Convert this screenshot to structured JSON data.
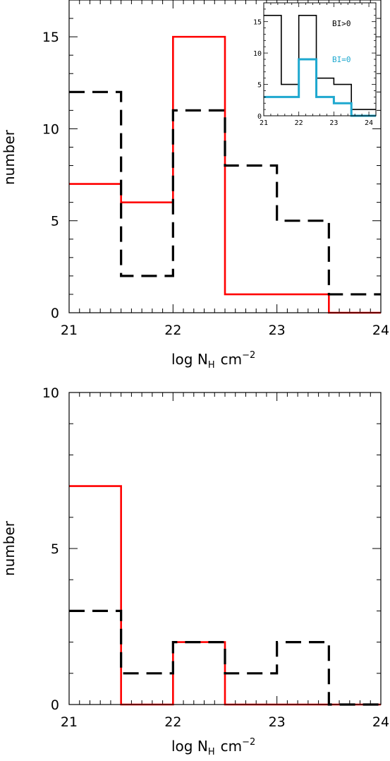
{
  "chart_data": [
    {
      "type": "histogram",
      "xlabel": "log N",
      "xlabel_sub": "H",
      "xlabel_unit": "cm",
      "xlabel_exp": "−2",
      "ylabel": "number",
      "xlim": [
        21,
        24
      ],
      "ylim": [
        0,
        17
      ],
      "xticks": [
        21,
        22,
        23,
        24
      ],
      "yticks": [
        0,
        5,
        10,
        15
      ],
      "bin_edges": [
        21,
        21.5,
        22,
        22.5,
        23,
        23.5,
        24
      ],
      "series": [
        {
          "style": "solid",
          "color": "#ff0000",
          "values": [
            7,
            6,
            15,
            1,
            1,
            0
          ]
        },
        {
          "style": "dashed",
          "color": "#000000",
          "values": [
            12,
            2,
            11,
            8,
            5,
            1
          ]
        }
      ],
      "inset": {
        "type": "histogram",
        "xlim": [
          21,
          24.2
        ],
        "ylim": [
          0,
          18
        ],
        "xticks": [
          21,
          22,
          23,
          24
        ],
        "yticks": [
          0,
          5,
          10,
          15
        ],
        "bin_edges": [
          21,
          21.5,
          22,
          22.5,
          23,
          23.5,
          24,
          24.2
        ],
        "series": [
          {
            "name": "BI>0",
            "color": "#000000",
            "values": [
              16,
              5,
              16,
              6,
              5,
              1,
              1
            ]
          },
          {
            "name": "BI=0",
            "color": "#1ea8cf",
            "values": [
              3,
              3,
              9,
              3,
              2,
              0,
              0
            ]
          }
        ]
      }
    },
    {
      "type": "histogram",
      "xlabel": "log N",
      "xlabel_sub": "H",
      "xlabel_unit": "cm",
      "xlabel_exp": "−2",
      "ylabel": "number",
      "xlim": [
        21,
        24
      ],
      "ylim": [
        0,
        10
      ],
      "xticks": [
        21,
        22,
        23,
        24
      ],
      "yticks": [
        0,
        5,
        10
      ],
      "bin_edges": [
        21,
        21.5,
        22,
        22.5,
        23,
        23.5,
        24
      ],
      "series": [
        {
          "style": "solid",
          "color": "#ff0000",
          "values": [
            7,
            0,
            2,
            0,
            0,
            0
          ]
        },
        {
          "style": "dashed",
          "color": "#000000",
          "values": [
            3,
            1,
            2,
            1,
            2,
            0
          ]
        }
      ]
    }
  ]
}
